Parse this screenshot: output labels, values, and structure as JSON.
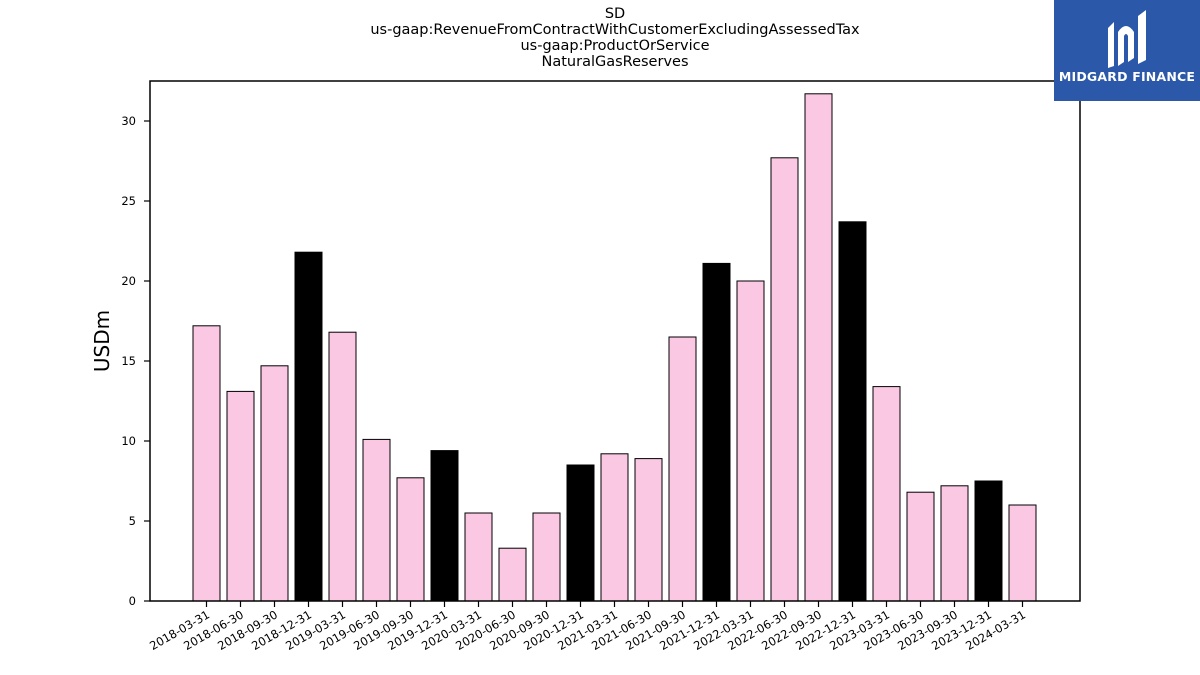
{
  "header": {
    "title_lines": [
      "SD",
      "us-gaap:RevenueFromContractWithCustomerExcludingAssessedTax",
      "us-gaap:ProductOrService",
      "NaturalGasReserves"
    ]
  },
  "brand": {
    "name": "MIDGARD FINANCE",
    "icon": "midgard-logo-icon",
    "background": "#2b58a8"
  },
  "chart_data": {
    "type": "bar",
    "title": "SD us-gaap:RevenueFromContractWithCustomerExcludingAssessedTax us-gaap:ProductOrService NaturalGasReserves",
    "xlabel": "",
    "ylabel": "USDm",
    "ylim": [
      0,
      32.5
    ],
    "yticks": [
      0,
      5,
      10,
      15,
      20,
      25,
      30
    ],
    "grid": false,
    "colors": {
      "quarter": "#fbc8e3",
      "year_end": "#000000",
      "edge": "#000000"
    },
    "categories": [
      "2018-03-31",
      "2018-06-30",
      "2018-09-30",
      "2018-12-31",
      "2019-03-31",
      "2019-06-30",
      "2019-09-30",
      "2019-12-31",
      "2020-03-31",
      "2020-06-30",
      "2020-09-30",
      "2020-12-31",
      "2021-03-31",
      "2021-06-30",
      "2021-09-30",
      "2021-12-31",
      "2022-03-31",
      "2022-06-30",
      "2022-09-30",
      "2022-12-31",
      "2023-03-31",
      "2023-06-30",
      "2023-09-30",
      "2023-12-31",
      "2024-03-31"
    ],
    "values": [
      17.2,
      13.1,
      14.7,
      21.8,
      16.8,
      10.1,
      7.7,
      9.4,
      5.5,
      3.3,
      5.5,
      8.5,
      9.2,
      8.9,
      16.5,
      21.1,
      20.0,
      27.7,
      31.7,
      23.7,
      13.4,
      6.8,
      7.2,
      7.5,
      6.0
    ]
  }
}
